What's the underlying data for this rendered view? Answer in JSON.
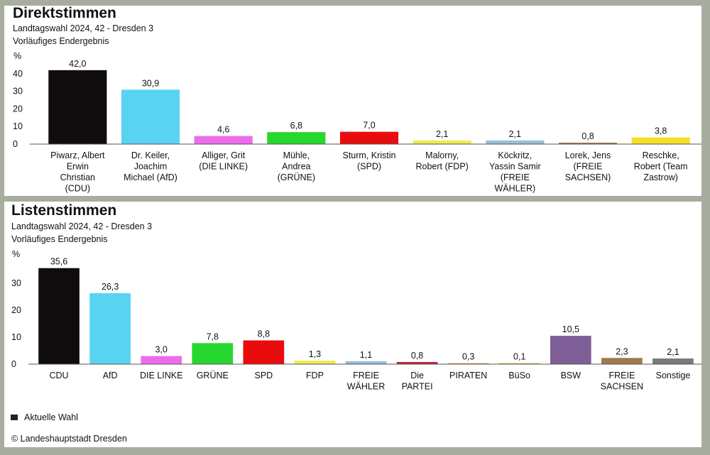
{
  "chart_data": [
    {
      "type": "bar",
      "title": "Direktstimmen",
      "subtitle1": "Landtagswahl 2024, 42 - Dresden 3",
      "subtitle2": "Vorläufiges Endergebnis",
      "ylabel": "%",
      "ylim": [
        0,
        45
      ],
      "yticks": [
        0,
        10,
        20,
        30,
        40
      ],
      "grid": false,
      "categories": [
        [
          "Piwarz, Albert",
          "Erwin",
          "Christian",
          "(CDU)"
        ],
        [
          "Dr. Keiler,",
          "Joachim",
          "Michael (AfD)"
        ],
        [
          "Alliger, Grit",
          "(DIE LINKE)"
        ],
        [
          "Mühle,",
          "Andrea",
          "(GRÜNE)"
        ],
        [
          "Sturm, Kristin",
          "(SPD)"
        ],
        [
          "Malorny,",
          "Robert (FDP)"
        ],
        [
          "Köckritz,",
          "Yassin Samir",
          "(FREIE",
          "WÄHLER)"
        ],
        [
          "Lorek, Jens",
          "(FREIE",
          "SACHSEN)"
        ],
        [
          "Reschke,",
          "Robert (Team",
          "Zastrow)"
        ]
      ],
      "values": [
        42.0,
        30.9,
        4.6,
        6.8,
        7.0,
        2.1,
        2.1,
        0.8,
        3.8
      ],
      "value_labels": [
        "42,0",
        "30,9",
        "4,6",
        "6,8",
        "7,0",
        "2,1",
        "2,1",
        "0,8",
        "3,8"
      ],
      "colors": [
        "#100c0d",
        "#58d3f1",
        "#ee6ceb",
        "#26d72e",
        "#e80c0c",
        "#eeeb50",
        "#9abfd8",
        "#9d7a4f",
        "#f5de25"
      ]
    },
    {
      "type": "bar",
      "title": "Listenstimmen",
      "subtitle1": "Landtagswahl 2024, 42 - Dresden 3",
      "subtitle2": "Vorläufiges Endergebnis",
      "ylabel": "%",
      "ylim": [
        0,
        38
      ],
      "yticks": [
        0,
        10,
        20,
        30
      ],
      "grid": false,
      "categories": [
        [
          "CDU"
        ],
        [
          "AfD"
        ],
        [
          "DIE LINKE"
        ],
        [
          "GRÜNE"
        ],
        [
          "SPD"
        ],
        [
          "FDP"
        ],
        [
          "FREIE",
          "WÄHLER"
        ],
        [
          "Die",
          "PARTEI"
        ],
        [
          "PIRATEN"
        ],
        [
          "BüSo"
        ],
        [
          "BSW"
        ],
        [
          "FREIE",
          "SACHSEN"
        ],
        [
          "Sonstige"
        ]
      ],
      "values": [
        35.6,
        26.3,
        3.0,
        7.8,
        8.8,
        1.3,
        1.1,
        0.8,
        0.3,
        0.1,
        10.5,
        2.3,
        2.1
      ],
      "value_labels": [
        "35,6",
        "26,3",
        "3,0",
        "7,8",
        "8,8",
        "1,3",
        "1,1",
        "0,8",
        "0,3",
        "0,1",
        "10,5",
        "2,3",
        "2,1"
      ],
      "colors": [
        "#100c0d",
        "#58d3f1",
        "#ee6ceb",
        "#26d72e",
        "#e80c0c",
        "#eeeb50",
        "#9abfd8",
        "#b8263a",
        "#e8a46a",
        "#d9c25a",
        "#7f5f97",
        "#9d7a4f",
        "#7a7a7a"
      ],
      "legend": "Aktuelle Wahl",
      "legend_color": "#222222",
      "legend_position": "bottom-left"
    }
  ],
  "copyright": "© Landeshauptstadt Dresden"
}
